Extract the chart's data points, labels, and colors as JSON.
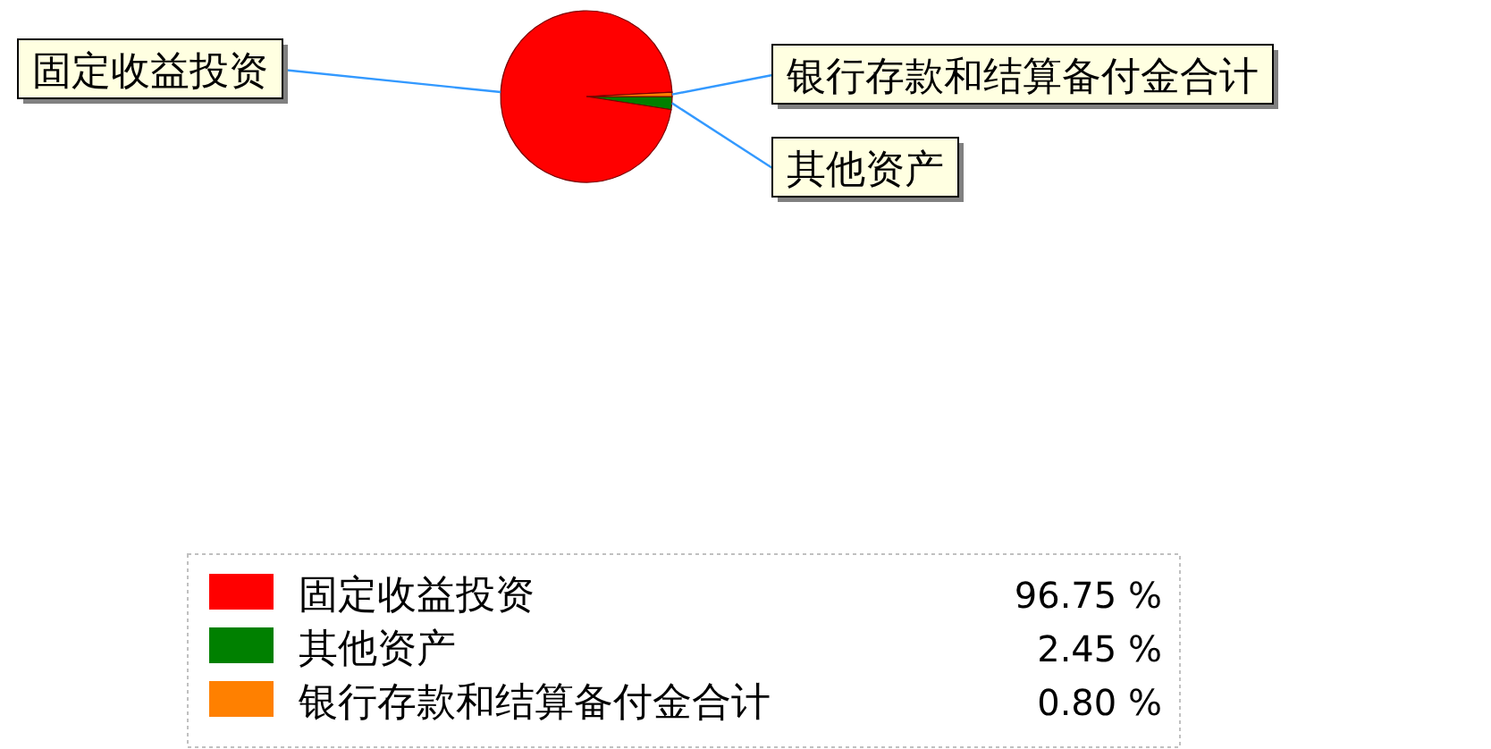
{
  "chart_data": {
    "type": "pie",
    "categories": [
      "固定收益投资",
      "其他资产",
      "银行存款和结算备付金合计"
    ],
    "values": [
      96.75,
      2.45,
      0.8
    ],
    "colors": [
      "#ff0000",
      "#008000",
      "#ff8000"
    ],
    "value_labels": [
      "96.75 %",
      "2.45 %",
      "0.80 %"
    ],
    "legend": "bottom"
  }
}
